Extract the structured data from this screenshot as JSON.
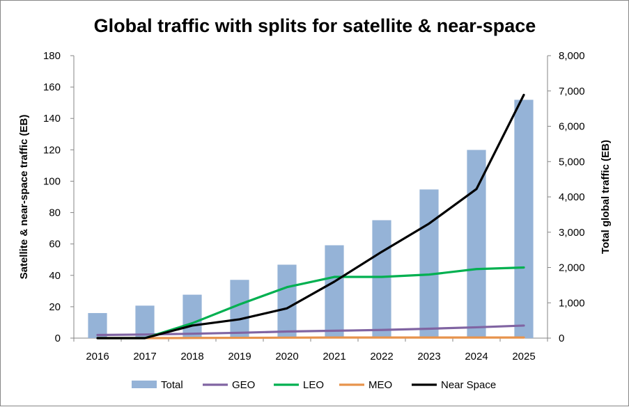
{
  "chart_data": {
    "type": "bar",
    "title": "Global traffic with splits for satellite & near-space",
    "categories": [
      "2016",
      "2017",
      "2018",
      "2019",
      "2020",
      "2021",
      "2022",
      "2023",
      "2024",
      "2025"
    ],
    "left_axis": {
      "label": "Satellite & near-space traffic (EB)",
      "min": 0,
      "max": 180,
      "step": 20,
      "ticks": [
        "0",
        "20",
        "40",
        "60",
        "80",
        "100",
        "120",
        "140",
        "160",
        "180"
      ]
    },
    "right_axis": {
      "label": "Total global traffic (EB)",
      "min": 0,
      "max": 8000,
      "step": 1000,
      "ticks": [
        "0",
        "1,000",
        "2,000",
        "3,000",
        "4,000",
        "5,000",
        "6,000",
        "7,000",
        "8,000"
      ]
    },
    "series": [
      {
        "name": "Total",
        "type": "bar",
        "axis": "right",
        "color": "#95b3d7",
        "values": [
          710,
          920,
          1230,
          1650,
          2080,
          2630,
          3340,
          4210,
          5330,
          6750
        ]
      },
      {
        "name": "GEO",
        "type": "line",
        "axis": "left",
        "color": "#8064a2",
        "values": [
          2,
          2.3,
          2.8,
          3.4,
          4.2,
          4.7,
          5.2,
          6.0,
          6.9,
          8.0
        ]
      },
      {
        "name": "LEO",
        "type": "line",
        "axis": "left",
        "color": "#00b050",
        "values": [
          0,
          0,
          9.5,
          21.5,
          32.5,
          39,
          39,
          40.5,
          44,
          45
        ]
      },
      {
        "name": "MEO",
        "type": "line",
        "axis": "left",
        "color": "#e7934c",
        "values": [
          0,
          0,
          0.1,
          0.2,
          0.3,
          0.4,
          0.4,
          0.4,
          0.4,
          0.4
        ]
      },
      {
        "name": "Near Space",
        "type": "line",
        "axis": "left",
        "color": "#000000",
        "values": [
          0,
          0,
          8,
          12,
          19,
          36,
          55,
          73,
          95,
          155
        ]
      }
    ],
    "legend_position": "bottom",
    "grid": false
  }
}
